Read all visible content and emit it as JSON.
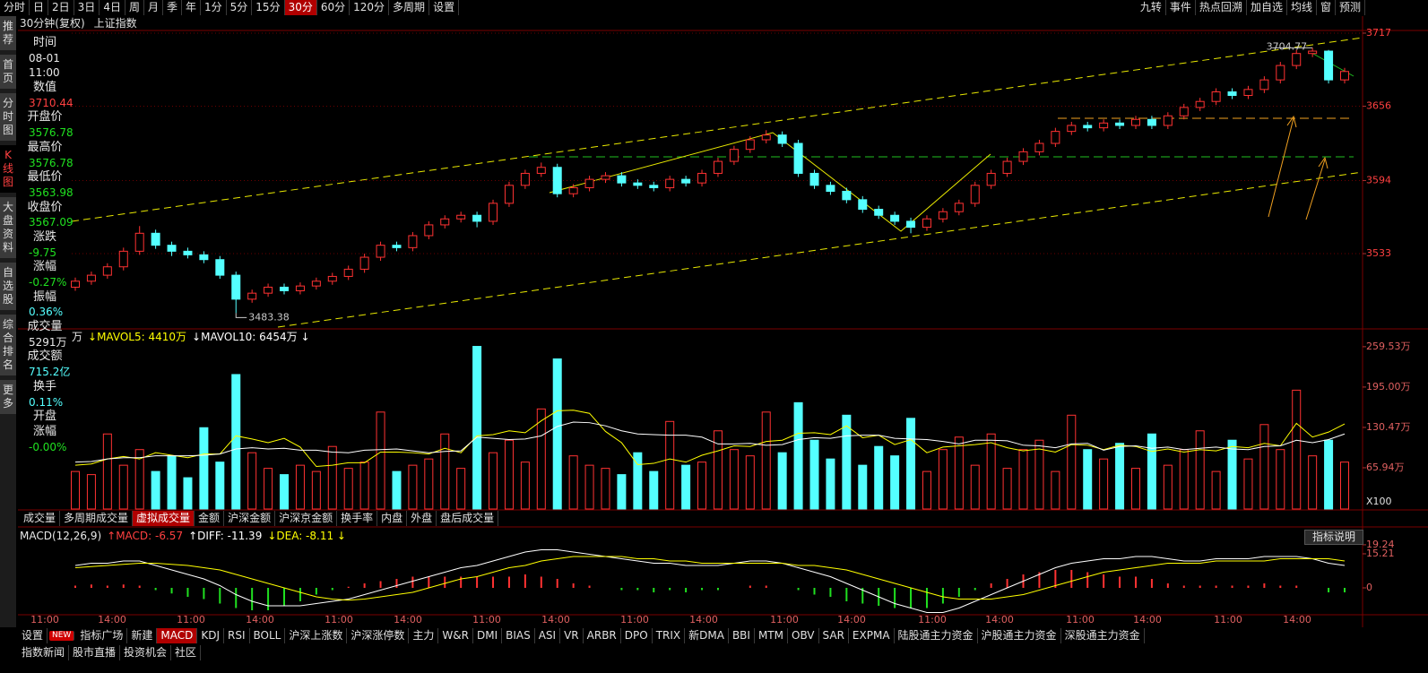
{
  "toolbar": {
    "periods": [
      "分时",
      "日",
      "2日",
      "3日",
      "4日",
      "周",
      "月",
      "季",
      "年",
      "1分",
      "5分",
      "15分",
      {
        "label": "30分",
        "active": true
      },
      "60分",
      "120分",
      "多周期",
      "设置"
    ],
    "tools": [
      "九转",
      "事件",
      "热点回溯",
      "加自选",
      "均线",
      "窗",
      "预测"
    ]
  },
  "side_tabs": [
    "推荐",
    "首页",
    "分时图",
    {
      "label": "K线图",
      "active": true
    },
    "大盘资料",
    "自选股",
    "综合排名",
    "更多"
  ],
  "chart_header": {
    "period": "30分钟(复权)",
    "name": "上证指数"
  },
  "info": [
    {
      "label": [
        "时间"
      ],
      "values": [
        "08-01",
        "11:00"
      ],
      "color": "#e8e8e8"
    },
    {
      "label": [
        "数值"
      ],
      "values": [
        "3710.44"
      ],
      "color": "#ff4040"
    },
    {
      "label": [
        "开盘价"
      ],
      "values": [
        "3576.78"
      ],
      "color": "#20e020"
    },
    {
      "label": [
        "最高价"
      ],
      "values": [
        "3576.78"
      ],
      "color": "#20e020"
    },
    {
      "label": [
        "最低价"
      ],
      "values": [
        "3563.98"
      ],
      "color": "#20e020"
    },
    {
      "label": [
        "收盘价"
      ],
      "values": [
        "3567.09"
      ],
      "color": "#20e020"
    },
    {
      "label": [
        "涨跌"
      ],
      "values": [
        "-9.75"
      ],
      "color": "#20e020"
    },
    {
      "label": [
        "涨幅"
      ],
      "values": [
        "-0.27%"
      ],
      "color": "#20e020"
    },
    {
      "label": [
        "振幅"
      ],
      "values": [
        "0.36%"
      ],
      "color": "#54ffff"
    },
    {
      "label": [
        "成交量"
      ],
      "values": [
        "5291万"
      ],
      "color": "#e8e8e8"
    },
    {
      "label": [
        "成交额"
      ],
      "values": [
        "715.2亿"
      ],
      "color": "#54ffff"
    },
    {
      "label": [
        "换手"
      ],
      "values": [
        "0.11%"
      ],
      "color": "#54ffff"
    },
    {
      "label": [
        "开盘",
        "涨幅"
      ],
      "values": [
        "-0.00%"
      ],
      "color": "#20e020"
    }
  ],
  "volume_tabs": [
    "成交量",
    "多周期成交量",
    {
      "label": "虚拟成交量",
      "active": true
    },
    "金额",
    "沪深金额",
    "沪深京金额",
    "换手率",
    "内盘",
    "外盘",
    "盘后成交量"
  ],
  "help_button": "指标说明",
  "indicator_tabs": [
    "设置",
    {
      "label": "NEW",
      "badge": true
    },
    "指标广场",
    "新建",
    {
      "label": "MACD",
      "active": true
    },
    "KDJ",
    "RSI",
    "BOLL",
    "沪深上涨数",
    "沪深涨停数",
    "主力",
    "W&R",
    "DMI",
    "BIAS",
    "ASI",
    "VR",
    "ARBR",
    "DPO",
    "TRIX",
    "新DMA",
    "BBI",
    "MTM",
    "OBV",
    "SAR",
    "EXPMA",
    "陆股通主力资金",
    "沪股通主力资金",
    "深股通主力资金"
  ],
  "news_tabs": [
    "指数新闻",
    "股市直播",
    "投资机会",
    "社区"
  ],
  "chart_data": [
    {
      "type": "candlestick",
      "up_color": "#ff3232",
      "down_color": "#54ffff",
      "grid": true,
      "ylim": [
        3471.7,
        3729.7
      ],
      "yticks": [
        3533,
        3594,
        3656,
        3717
      ],
      "high_label": 3704.77,
      "low_label": 3483.38,
      "open": [
        3505,
        3510,
        3515,
        3522,
        3535,
        3550,
        3540,
        3535,
        3532,
        3528,
        3515,
        3495,
        3500,
        3505,
        3502,
        3506,
        3510,
        3514,
        3520,
        3530,
        3540,
        3538,
        3548,
        3557,
        3562,
        3565,
        3560,
        3575,
        3590,
        3600,
        3605,
        3583,
        3588,
        3595,
        3598,
        3592,
        3590,
        3588,
        3595,
        3592,
        3600,
        3610,
        3620,
        3628,
        3632,
        3625,
        3600,
        3590,
        3585,
        3578,
        3570,
        3565,
        3560,
        3555,
        3562,
        3568,
        3575,
        3590,
        3600,
        3610,
        3618,
        3625,
        3635,
        3640,
        3638,
        3642,
        3640,
        3645,
        3640,
        3648,
        3655,
        3660,
        3668,
        3665,
        3670,
        3678,
        3690,
        3700,
        3702,
        3678
      ],
      "high": [
        3513,
        3518,
        3525,
        3538,
        3556,
        3553,
        3543,
        3538,
        3535,
        3531,
        3518,
        3503,
        3508,
        3508,
        3509,
        3513,
        3517,
        3523,
        3533,
        3543,
        3543,
        3551,
        3560,
        3565,
        3568,
        3568,
        3578,
        3593,
        3603,
        3609,
        3608,
        3591,
        3598,
        3601,
        3601,
        3595,
        3593,
        3598,
        3598,
        3603,
        3613,
        3623,
        3631,
        3636,
        3635,
        3628,
        3603,
        3593,
        3588,
        3581,
        3573,
        3568,
        3563,
        3565,
        3571,
        3578,
        3593,
        3603,
        3613,
        3621,
        3628,
        3638,
        3643,
        3643,
        3645,
        3645,
        3648,
        3648,
        3651,
        3658,
        3663,
        3671,
        3671,
        3673,
        3681,
        3693,
        3703,
        3704.77,
        3703,
        3688
      ],
      "low": [
        3502,
        3507,
        3512,
        3519,
        3532,
        3537,
        3531,
        3529,
        3525,
        3512,
        3483.38,
        3492,
        3497,
        3499,
        3499,
        3503,
        3507,
        3511,
        3517,
        3527,
        3535,
        3535,
        3545,
        3554,
        3559,
        3555,
        3557,
        3572,
        3587,
        3597,
        3580,
        3580,
        3585,
        3592,
        3589,
        3587,
        3585,
        3585,
        3589,
        3589,
        3597,
        3607,
        3617,
        3625,
        3622,
        3597,
        3587,
        3582,
        3575,
        3567,
        3562,
        3557,
        3550,
        3552,
        3559,
        3565,
        3572,
        3587,
        3597,
        3607,
        3615,
        3622,
        3632,
        3635,
        3635,
        3637,
        3637,
        3637,
        3637,
        3645,
        3652,
        3657,
        3662,
        3662,
        3667,
        3675,
        3687,
        3697,
        3675,
        3675
      ],
      "close": [
        3510,
        3515,
        3522,
        3535,
        3550,
        3540,
        3535,
        3532,
        3528,
        3515,
        3495,
        3500,
        3505,
        3502,
        3506,
        3510,
        3514,
        3520,
        3530,
        3540,
        3538,
        3548,
        3557,
        3562,
        3565,
        3560,
        3575,
        3590,
        3600,
        3605,
        3583,
        3588,
        3595,
        3598,
        3592,
        3590,
        3588,
        3595,
        3592,
        3600,
        3610,
        3620,
        3628,
        3632,
        3625,
        3600,
        3590,
        3585,
        3578,
        3570,
        3565,
        3560,
        3555,
        3562,
        3568,
        3575,
        3590,
        3600,
        3610,
        3618,
        3625,
        3635,
        3640,
        3638,
        3642,
        3640,
        3645,
        3640,
        3648,
        3655,
        3660,
        3668,
        3665,
        3670,
        3678,
        3690,
        3700,
        3702,
        3678,
        3685
      ]
    },
    {
      "type": "volume",
      "legend": [
        "万",
        "↓MAVOL5: 4410万",
        "↓MAVOL10: 6454万 ↓"
      ],
      "legend_colors": [
        "#e8e8e8",
        "#ffff00",
        "#ffffff"
      ],
      "scale_label": "X100",
      "grid": true,
      "ylim": [
        0,
        283.7
      ],
      "yticks": [
        {
          "value": 65.94,
          "label": "65.94万"
        },
        {
          "value": 130.47,
          "label": "130.47万"
        },
        {
          "value": 195.0,
          "label": "195.00万"
        },
        {
          "value": 259.53,
          "label": "259.53万"
        }
      ],
      "values": [
        60,
        55,
        120,
        70,
        95,
        60,
        85,
        50,
        130,
        75,
        215,
        90,
        65,
        55,
        70,
        60,
        100,
        65,
        75,
        155,
        60,
        70,
        80,
        120,
        65,
        260,
        90,
        110,
        75,
        160,
        240,
        85,
        70,
        65,
        55,
        90,
        60,
        140,
        70,
        75,
        125,
        95,
        85,
        155,
        90,
        170,
        110,
        80,
        150,
        70,
        100,
        85,
        145,
        60,
        95,
        115,
        70,
        120,
        65,
        95,
        110,
        60,
        150,
        95,
        80,
        105,
        65,
        120,
        70,
        95,
        125,
        60,
        110,
        80,
        135,
        95,
        190,
        85,
        110,
        75
      ],
      "series": [
        {
          "color": "#ffff00",
          "values": [
            70,
            72,
            80,
            84,
            80,
            90,
            86,
            82,
            88,
            88,
            117,
            112,
            106,
            113,
            99,
            68,
            70,
            74,
            74,
            91,
            91,
            90,
            88,
            97,
            90,
            117,
            119,
            125,
            122,
            141,
            157,
            158,
            153,
            124,
            106,
            71,
            73,
            80,
            75,
            86,
            93,
            101,
            100,
            108,
            110,
            121,
            122,
            119,
            133,
            114,
            118,
            103,
            111,
            90,
            99,
            101,
            103,
            106,
            98,
            93,
            96,
            91,
            103,
            102,
            95,
            102,
            100,
            92,
            96,
            91,
            95,
            93,
            100,
            98,
            105,
            101,
            137,
            115,
            123,
            136
          ]
        },
        {
          "color": "#ffffff",
          "values": [
            75,
            76,
            80,
            82,
            82,
            85,
            85,
            85,
            86,
            88,
            96,
            98,
            96,
            97,
            94,
            94,
            91,
            90,
            94,
            95,
            96,
            93,
            90,
            92,
            93,
            115,
            113,
            111,
            112,
            117,
            132,
            139,
            138,
            133,
            125,
            120,
            119,
            118,
            118,
            115,
            104,
            104,
            105,
            102,
            103,
            111,
            114,
            113,
            117,
            118,
            118,
            113,
            112,
            111,
            108,
            104,
            110,
            110,
            109,
            102,
            101,
            98,
            104,
            105,
            94,
            100,
            101,
            97,
            99,
            95,
            97,
            99,
            96,
            95,
            100,
            101,
            110,
            106,
            111,
            120
          ]
        }
      ]
    },
    {
      "type": "macd",
      "legend": [
        "MACD(12,26,9)",
        "↑MACD: -6.57",
        "↑DIFF: -11.39",
        "↓DEA: -8.11 ↓"
      ],
      "legend_colors": [
        "#e8e8e8",
        "#ff4040",
        "#ffffff",
        "#ffff00"
      ],
      "ylim": [
        -11.6,
        26.4
      ],
      "yticks": [
        0,
        15.21,
        19.24
      ],
      "pos_color": "#ff3232",
      "neg_color": "#20e020",
      "x_labels": [
        "11:00",
        "14:00",
        "11:00",
        "14:00",
        "11:00",
        "14:00",
        "11:00",
        "14:00",
        "11:00",
        "14:00",
        "11:00",
        "14:00",
        "11:00",
        "14:00",
        "11:00",
        "14:00",
        "11:00",
        "14:00"
      ],
      "hist": [
        1,
        1.5,
        1,
        1.5,
        1,
        -1,
        -2.5,
        -4,
        -5,
        -7,
        -9,
        -10,
        -10,
        -8,
        -6,
        -3,
        -1,
        0.5,
        2,
        3,
        4,
        5,
        5,
        5,
        5,
        5,
        5,
        5,
        6,
        5,
        4,
        2,
        1,
        0,
        -1,
        -1,
        -2,
        -1,
        -2,
        -1,
        -1,
        0,
        1,
        1,
        0,
        -1,
        -3,
        -4,
        -6,
        -7,
        -8,
        -9,
        -9,
        -9,
        -7,
        -4,
        -1,
        2,
        4,
        6,
        7,
        8,
        8,
        7,
        6,
        5,
        5,
        4,
        2,
        1,
        1,
        1,
        1,
        1,
        2,
        1,
        1,
        0,
        -2,
        -2
      ],
      "series": [
        {
          "name": "DIFF",
          "color": "#ffffff",
          "values": [
            10,
            11,
            11,
            12,
            12,
            10,
            8,
            6,
            4,
            1,
            -3,
            -6,
            -8,
            -8,
            -8,
            -7,
            -6,
            -5,
            -3,
            -1,
            1,
            3,
            5,
            7,
            9,
            10,
            12,
            14,
            16,
            17,
            17,
            16,
            15,
            14,
            13,
            12,
            11,
            11,
            10,
            10,
            10,
            11,
            12,
            12,
            11,
            9,
            7,
            5,
            2,
            -1,
            -4,
            -7,
            -9,
            -11,
            -11,
            -9,
            -6,
            -3,
            0,
            3,
            6,
            9,
            11,
            12,
            13,
            13,
            14,
            14,
            13,
            12,
            12,
            13,
            13,
            13,
            14,
            14,
            14,
            13,
            11,
            10
          ]
        },
        {
          "name": "DEA",
          "color": "#ffff00",
          "values": [
            9,
            9.5,
            10,
            10.5,
            11,
            11,
            10.5,
            10,
            9,
            8,
            6,
            4,
            2,
            0,
            -2,
            -4,
            -5,
            -5.5,
            -5,
            -4,
            -3,
            -2,
            0,
            2,
            4,
            5,
            7,
            9,
            10,
            12,
            13,
            14,
            14,
            14,
            14,
            13,
            13,
            12,
            12,
            11,
            11,
            11,
            11,
            11,
            11,
            10,
            10,
            9,
            8,
            6,
            4,
            2,
            0,
            -2,
            -4,
            -5,
            -5,
            -5,
            -4,
            -3,
            -1,
            1,
            3,
            5,
            7,
            8,
            9,
            10,
            11,
            11,
            11,
            12,
            12,
            12,
            12,
            13,
            13,
            13,
            13,
            12
          ]
        }
      ]
    }
  ]
}
